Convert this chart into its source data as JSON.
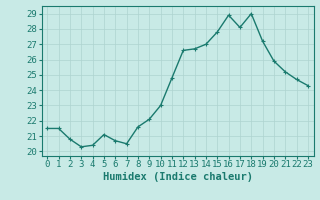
{
  "x": [
    0,
    1,
    2,
    3,
    4,
    5,
    6,
    7,
    8,
    9,
    10,
    11,
    12,
    13,
    14,
    15,
    16,
    17,
    18,
    19,
    20,
    21,
    22,
    23
  ],
  "y": [
    21.5,
    21.5,
    20.8,
    20.3,
    20.4,
    21.1,
    20.7,
    20.5,
    21.6,
    22.1,
    23.0,
    24.8,
    26.6,
    26.7,
    27.0,
    27.8,
    28.9,
    28.1,
    29.0,
    27.2,
    25.9,
    25.2,
    24.7,
    24.3
  ],
  "yticks": [
    20,
    21,
    22,
    23,
    24,
    25,
    26,
    27,
    28,
    29
  ],
  "xlabel": "Humidex (Indice chaleur)",
  "line_color": "#1a7a6e",
  "marker_color": "#1a7a6e",
  "bg_color": "#c8eae6",
  "grid_color": "#aed4d0",
  "axis_color": "#1a7a6e",
  "tick_color": "#1a7a6e",
  "xlabel_color": "#1a7a6e",
  "xlabel_fontsize": 7.5,
  "tick_fontsize": 6.5,
  "line_width": 1.0,
  "marker_size": 3.5
}
